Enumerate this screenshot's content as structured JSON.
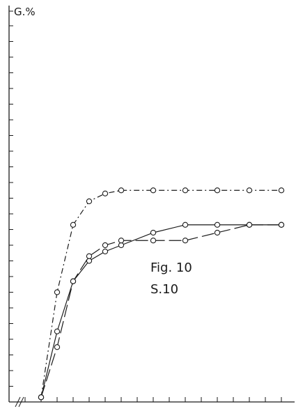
{
  "chart_data": {
    "type": "line",
    "ylabel": "G.%",
    "annotations": [
      "Fig. 10",
      "S.10"
    ],
    "grid": false,
    "ylim": [
      0,
      28
    ],
    "xlim": [
      0,
      17
    ],
    "series": [
      {
        "style": "dash-dot",
        "x": [
          2,
          3,
          4,
          5,
          6,
          7,
          9,
          11,
          13,
          15,
          17
        ],
        "y": [
          0.3,
          7.0,
          11.3,
          12.8,
          13.3,
          13.5,
          13.5,
          13.5,
          13.5,
          13.5,
          13.5
        ]
      },
      {
        "style": "solid",
        "x": [
          2,
          3,
          4,
          5,
          6,
          7,
          9,
          11,
          13,
          15,
          17
        ],
        "y": [
          0.3,
          4.5,
          7.7,
          9.0,
          9.6,
          10.0,
          10.8,
          11.3,
          11.3,
          11.3,
          11.3
        ]
      },
      {
        "style": "dashed",
        "x": [
          2,
          3,
          4,
          5,
          6,
          7,
          9,
          11,
          13,
          15,
          17
        ],
        "y": [
          0.3,
          3.5,
          7.7,
          9.3,
          10.0,
          10.3,
          10.3,
          10.3,
          10.8,
          11.3,
          11.3
        ]
      }
    ]
  }
}
